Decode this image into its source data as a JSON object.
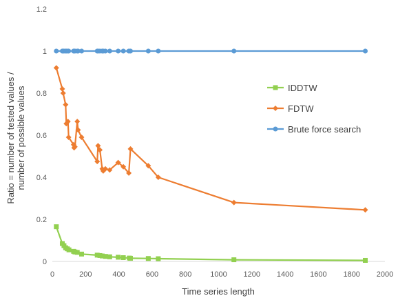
{
  "chart_data": {
    "type": "line",
    "title": "",
    "xlabel": "Time series length",
    "ylabel": "Ratio = number of tested values / number of possible values",
    "xlim": [
      0,
      2000
    ],
    "ylim": [
      0,
      1.2
    ],
    "x_ticks": [
      "0",
      "200",
      "400",
      "600",
      "800",
      "1000",
      "1200",
      "1400",
      "1600",
      "1800",
      "2000"
    ],
    "y_ticks": [
      "0",
      "0.2",
      "0.4",
      "0.6",
      "0.8",
      "1",
      "1.2"
    ],
    "grid": "none",
    "legend_position": "right",
    "series": [
      {
        "name": "IDDTW",
        "color": "#92d050",
        "marker": "square",
        "points": [
          [
            24,
            0.165
          ],
          [
            60,
            0.085
          ],
          [
            70,
            0.075
          ],
          [
            80,
            0.065
          ],
          [
            90,
            0.06
          ],
          [
            100,
            0.055
          ],
          [
            128,
            0.048
          ],
          [
            136,
            0.045
          ],
          [
            150,
            0.043
          ],
          [
            176,
            0.035
          ],
          [
            270,
            0.03
          ],
          [
            286,
            0.028
          ],
          [
            300,
            0.026
          ],
          [
            320,
            0.024
          ],
          [
            345,
            0.022
          ],
          [
            396,
            0.02
          ],
          [
            427,
            0.018
          ],
          [
            463,
            0.016
          ],
          [
            470,
            0.015
          ],
          [
            577,
            0.014
          ],
          [
            637,
            0.013
          ],
          [
            1092,
            0.008
          ],
          [
            1882,
            0.005
          ]
        ]
      },
      {
        "name": "FDTW",
        "color": "#ed7d31",
        "marker": "diamond",
        "points": [
          [
            24,
            0.92
          ],
          [
            60,
            0.82
          ],
          [
            65,
            0.8
          ],
          [
            80,
            0.745
          ],
          [
            84,
            0.655
          ],
          [
            94,
            0.665
          ],
          [
            98,
            0.59
          ],
          [
            128,
            0.555
          ],
          [
            131,
            0.54
          ],
          [
            136,
            0.545
          ],
          [
            150,
            0.665
          ],
          [
            155,
            0.625
          ],
          [
            176,
            0.59
          ],
          [
            270,
            0.475
          ],
          [
            275,
            0.55
          ],
          [
            286,
            0.53
          ],
          [
            300,
            0.44
          ],
          [
            306,
            0.43
          ],
          [
            319,
            0.44
          ],
          [
            345,
            0.435
          ],
          [
            396,
            0.47
          ],
          [
            427,
            0.45
          ],
          [
            460,
            0.42
          ],
          [
            470,
            0.535
          ],
          [
            577,
            0.455
          ],
          [
            637,
            0.4
          ],
          [
            1092,
            0.28
          ],
          [
            1882,
            0.245
          ]
        ]
      },
      {
        "name": "Brute force search",
        "color": "#5b9bd5",
        "marker": "circle",
        "points": [
          [
            24,
            1
          ],
          [
            60,
            1
          ],
          [
            65,
            1
          ],
          [
            70,
            1
          ],
          [
            80,
            1
          ],
          [
            84,
            1
          ],
          [
            94,
            1
          ],
          [
            98,
            1
          ],
          [
            128,
            1
          ],
          [
            131,
            1
          ],
          [
            136,
            1
          ],
          [
            150,
            1
          ],
          [
            155,
            1
          ],
          [
            176,
            1
          ],
          [
            270,
            1
          ],
          [
            275,
            1
          ],
          [
            286,
            1
          ],
          [
            300,
            1
          ],
          [
            306,
            1
          ],
          [
            319,
            1
          ],
          [
            345,
            1
          ],
          [
            396,
            1
          ],
          [
            427,
            1
          ],
          [
            460,
            1
          ],
          [
            470,
            1
          ],
          [
            577,
            1
          ],
          [
            637,
            1
          ],
          [
            1092,
            1
          ],
          [
            1882,
            1
          ]
        ]
      }
    ]
  }
}
